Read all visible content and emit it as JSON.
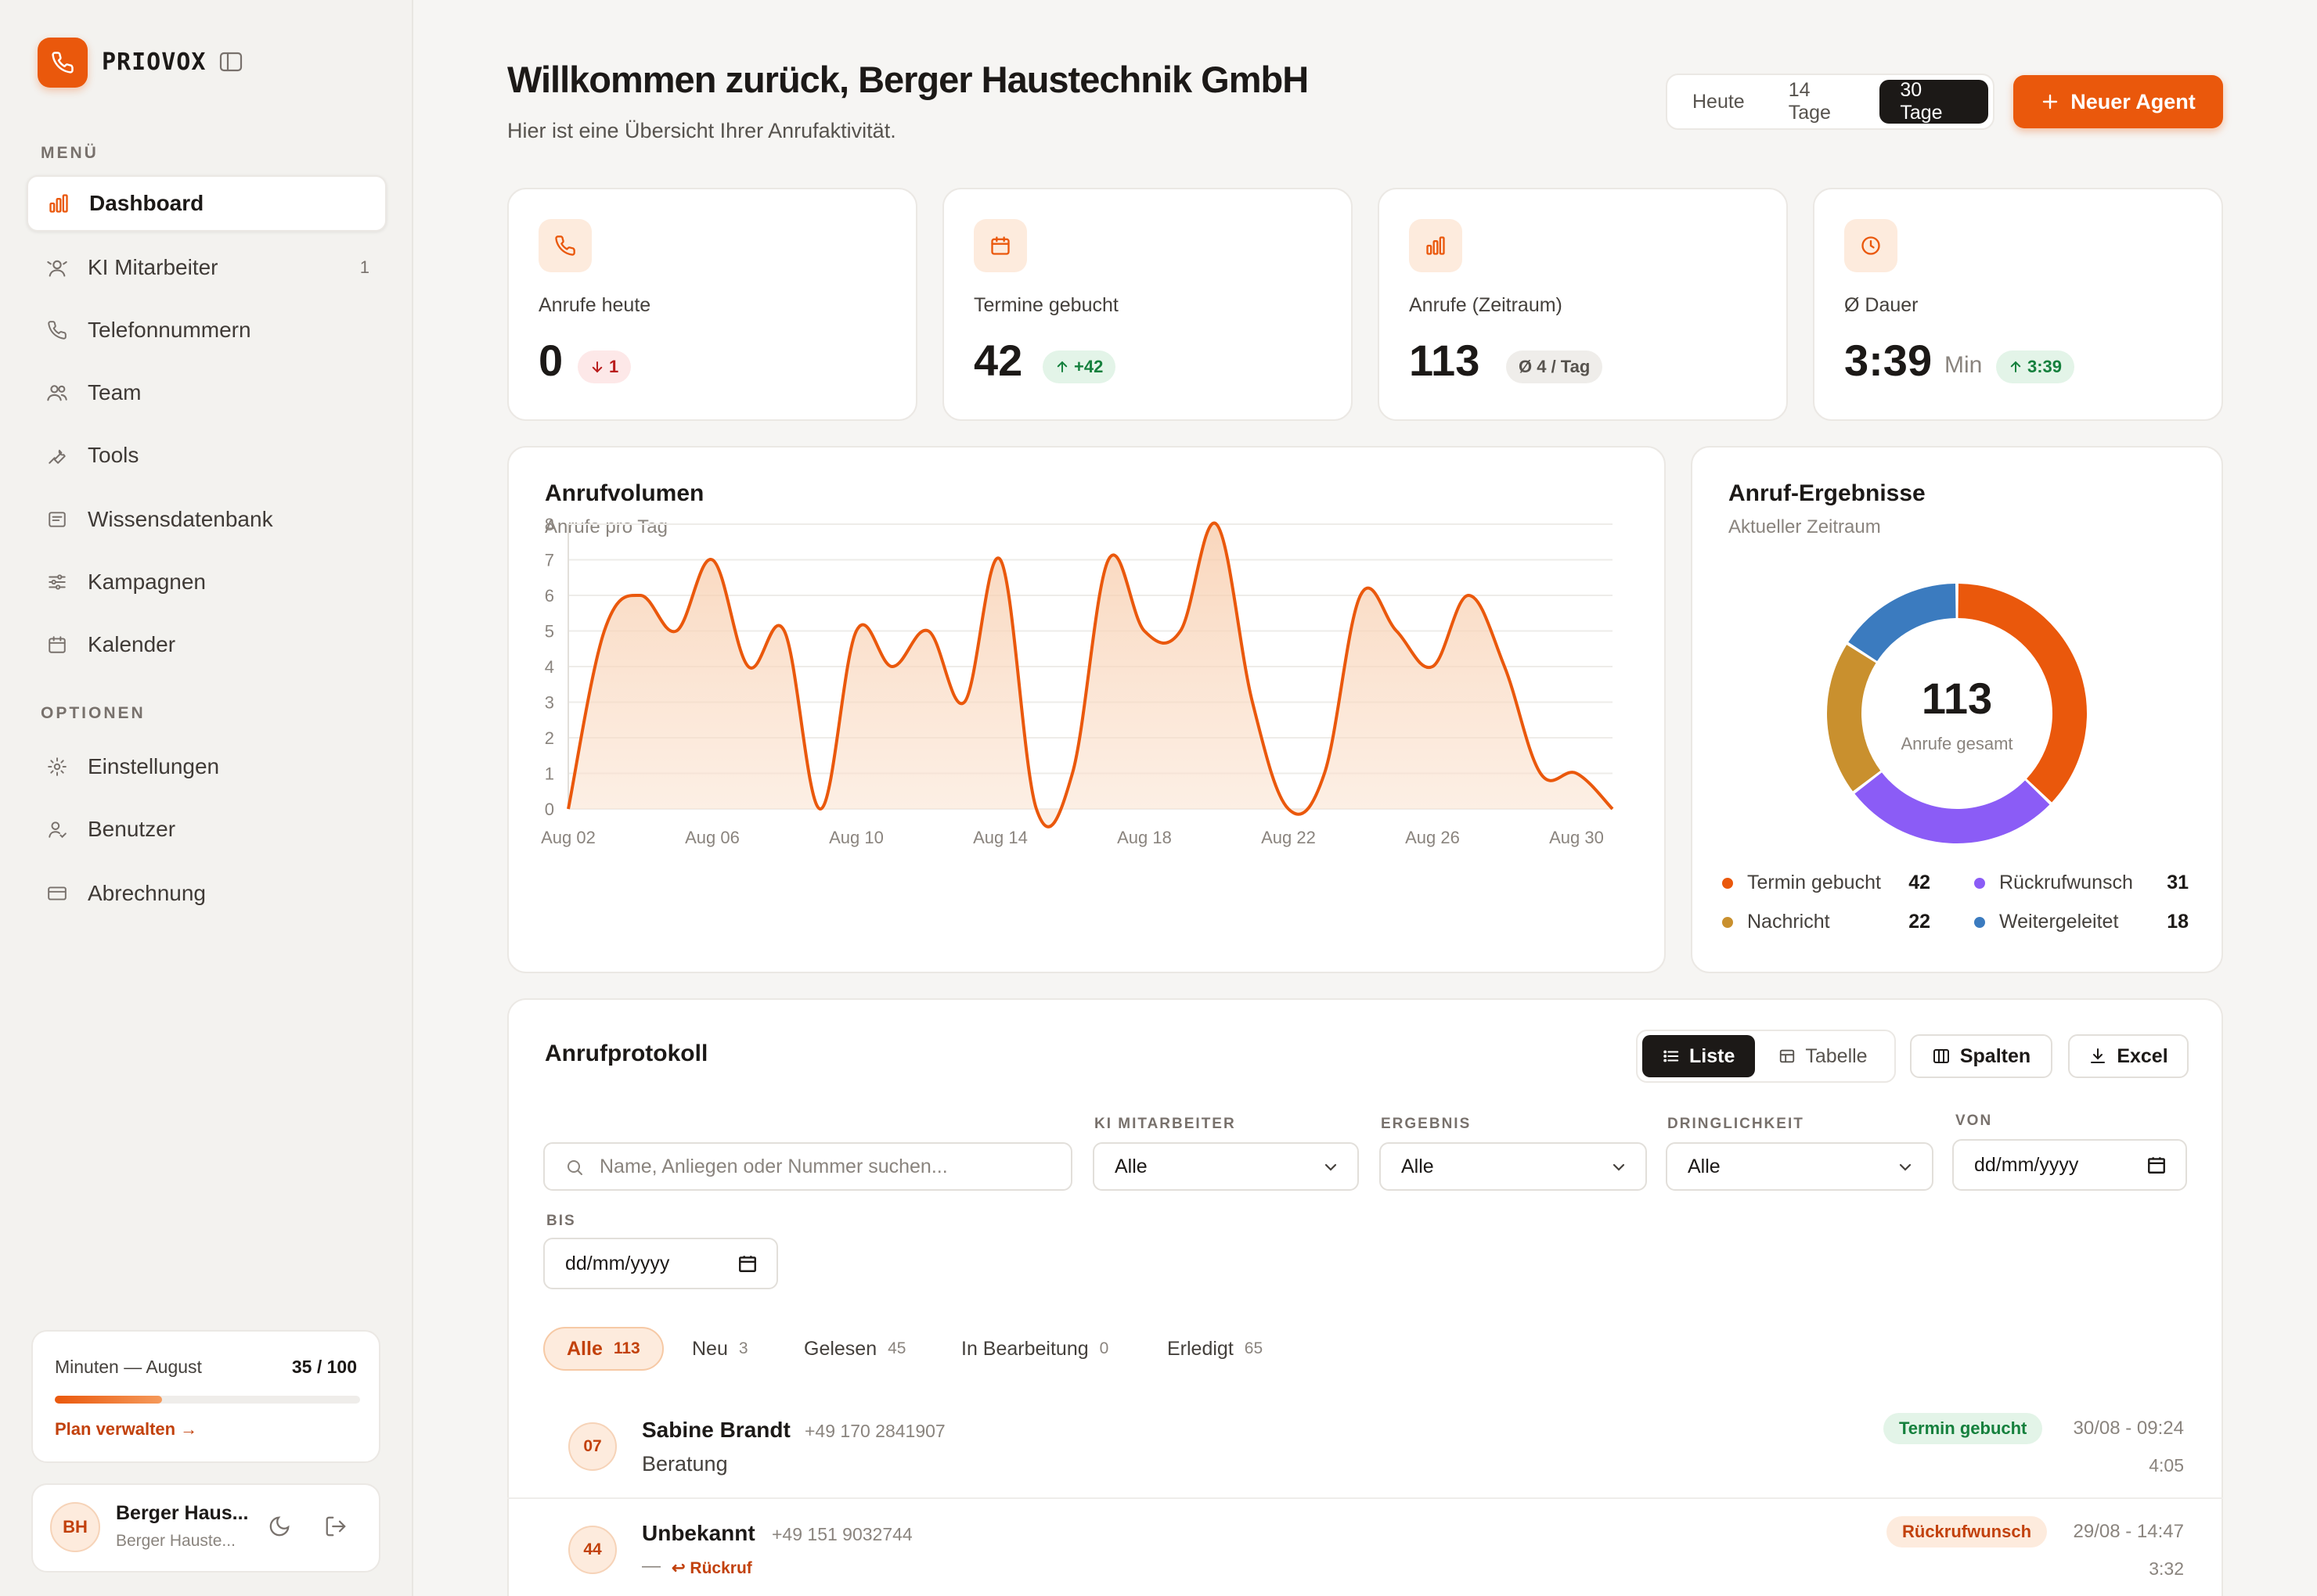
{
  "brand": {
    "name": "PRIOVOX",
    "accent": "#ea580c"
  },
  "sidebar": {
    "menu_label": "MENÜ",
    "options_label": "OPTIONEN",
    "menu_items": [
      {
        "label": "Dashboard",
        "icon": "bar-chart-icon",
        "active": true
      },
      {
        "label": "KI Mitarbeiter",
        "icon": "bot-icon",
        "badge": "1"
      },
      {
        "label": "Telefonnummern",
        "icon": "phone-icon"
      },
      {
        "label": "Team",
        "icon": "users-icon"
      },
      {
        "label": "Tools",
        "icon": "wrench-icon"
      },
      {
        "label": "Wissensdatenbank",
        "icon": "book-icon"
      },
      {
        "label": "Kampagnen",
        "icon": "sliders-icon"
      },
      {
        "label": "Kalender",
        "icon": "calendar-icon"
      }
    ],
    "option_items": [
      {
        "label": "Einstellungen",
        "icon": "gear-icon"
      },
      {
        "label": "Benutzer",
        "icon": "user-icon"
      },
      {
        "label": "Abrechnung",
        "icon": "credit-card-icon"
      }
    ],
    "usage": {
      "label": "Minuten — August",
      "value": "35 / 100",
      "fraction": 0.35,
      "link": "Plan verwalten →"
    },
    "user": {
      "initials": "BH",
      "name": "Berger Haus...",
      "sub": "Berger Hauste..."
    }
  },
  "header": {
    "title": "Willkommen zurück, Berger Haustechnik GmbH",
    "subtitle": "Hier ist eine Übersicht Ihrer Anrufaktivität.",
    "ranges": [
      "Heute",
      "14 Tage",
      "30 Tage"
    ],
    "selected_range": "30 Tage",
    "new_agent": "Neuer Agent"
  },
  "stats": [
    {
      "label": "Anrufe heute",
      "value": "0",
      "delta": "1",
      "delta_kind": "down",
      "icon": "phone-icon"
    },
    {
      "label": "Termine gebucht",
      "value": "42",
      "delta": "+42",
      "delta_kind": "up",
      "icon": "calendar-icon"
    },
    {
      "label": "Anrufe (Zeitraum)",
      "value": "113",
      "delta": "Ø 4 / Tag",
      "delta_kind": "neutral",
      "icon": "bar-chart-icon"
    },
    {
      "label": "Ø Dauer",
      "value": "3:39",
      "unit": "Min",
      "delta": "3:39",
      "delta_kind": "up",
      "icon": "clock-icon"
    }
  ],
  "volume": {
    "title": "Anrufvolumen",
    "subtitle": "Anrufe pro Tag"
  },
  "chart_data": [
    {
      "type": "area",
      "title": "Anrufvolumen",
      "subtitle": "Anrufe pro Tag",
      "ylim": [
        0,
        8
      ],
      "yticks": [
        0,
        1,
        2,
        3,
        4,
        5,
        6,
        7,
        8
      ],
      "x_tick_labels": [
        "Aug 02",
        "Aug 06",
        "Aug 10",
        "Aug 14",
        "Aug 18",
        "Aug 22",
        "Aug 26",
        "Aug 30"
      ],
      "grid": true,
      "x": [
        "Aug 02",
        "Aug 03",
        "Aug 04",
        "Aug 05",
        "Aug 06",
        "Aug 07",
        "Aug 08",
        "Aug 09",
        "Aug 10",
        "Aug 11",
        "Aug 12",
        "Aug 13",
        "Aug 14",
        "Aug 15",
        "Aug 16",
        "Aug 17",
        "Aug 18",
        "Aug 19",
        "Aug 20",
        "Aug 21",
        "Aug 22",
        "Aug 23",
        "Aug 24",
        "Aug 25",
        "Aug 26",
        "Aug 27",
        "Aug 28",
        "Aug 29",
        "Aug 30",
        "Aug 31"
      ],
      "values": [
        0,
        5,
        6,
        5,
        7,
        4,
        5,
        0,
        5,
        4,
        5,
        3,
        7,
        0,
        1,
        7,
        5,
        5,
        8,
        3,
        0,
        1,
        6,
        5,
        4,
        6,
        4,
        1,
        1,
        0
      ],
      "color": "#ea580c"
    },
    {
      "type": "pie",
      "title": "Anruf-Ergebnisse",
      "subtitle": "Aktueller Zeitraum",
      "total": "113",
      "total_label": "Anrufe gesamt",
      "slices": [
        {
          "name": "Termin gebucht",
          "value": 42,
          "color": "#ea580c"
        },
        {
          "name": "Rückrufwunsch",
          "value": 31,
          "color": "#8b5cf6"
        },
        {
          "name": "Nachricht",
          "value": 22,
          "color": "#c9902e"
        },
        {
          "name": "Weitergeleitet",
          "value": 18,
          "color": "#3b7bbf"
        }
      ]
    }
  ],
  "outcomes": {
    "title": "Anruf-Ergebnisse",
    "subtitle": "Aktueller Zeitraum"
  },
  "log": {
    "title": "Anrufprotokoll",
    "view_list": "Liste",
    "view_table": "Tabelle",
    "columns_btn": "Spalten",
    "excel_btn": "Excel",
    "search_placeholder": "Name, Anliegen oder Nummer suchen...",
    "filters": {
      "agent": {
        "label": "KI MITARBEITER",
        "value": "Alle"
      },
      "result": {
        "label": "ERGEBNIS",
        "value": "Alle"
      },
      "urgency": {
        "label": "DRINGLICHKEIT",
        "value": "Alle"
      },
      "from": {
        "label": "VON",
        "value": "dd/mm/yyyy"
      },
      "to": {
        "label": "BIS",
        "value": "dd/mm/yyyy"
      }
    },
    "tabs": [
      {
        "label": "Alle",
        "count": "113",
        "selected": true
      },
      {
        "label": "Neu",
        "count": "3"
      },
      {
        "label": "Gelesen",
        "count": "45"
      },
      {
        "label": "In Bearbeitung",
        "count": "0"
      },
      {
        "label": "Erledigt",
        "count": "65"
      }
    ],
    "rows": [
      {
        "avatar": "07",
        "name": "Sabine Brandt",
        "phone": "+49 170 2841907",
        "topic": "Beratung",
        "status": "Termin gebucht",
        "status_kind": "ok",
        "date": "30/08 - 09:24",
        "duration": "4:05"
      },
      {
        "avatar": "44",
        "name": "Unbekannt",
        "phone": "+49 151 9032744",
        "topic": "—",
        "tag": "↩ Rückruf",
        "status": "Rückrufwunsch",
        "status_kind": "cb",
        "date": "29/08 - 14:47",
        "duration": "3:32"
      }
    ]
  }
}
